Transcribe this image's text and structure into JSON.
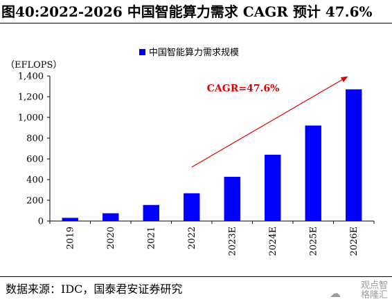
{
  "title": "图40:2022-2026 中国智能算力需求 CAGR 预计 47.6%",
  "source": "数据来源：IDC，国泰君安证券研究",
  "watermark": {
    "line1": "观点智",
    "line2": "格隆汇",
    "icon": "wechat-icon"
  },
  "colors": {
    "bar": "#0000FF",
    "arrow": "#E00000",
    "annotation": "#E00000",
    "axis": "#000000"
  },
  "chart_data": {
    "type": "bar",
    "categories": [
      "2019",
      "2020",
      "2021",
      "2022",
      "2023E",
      "2024E",
      "2025E",
      "2026E"
    ],
    "series": [
      {
        "name": "中国智能算力需求规模",
        "values": [
          31,
          75,
          155,
          268,
          427,
          640,
          922,
          1271
        ]
      }
    ],
    "ylabel": "（EFLOPS）",
    "ylim": [
      0,
      1400
    ],
    "yticks": [
      0,
      200,
      400,
      600,
      800,
      1000,
      1200,
      1400
    ],
    "ytick_labels": [
      "0",
      "200",
      "400",
      "600",
      "800",
      "1,000",
      "1,200",
      "1,400"
    ],
    "legend": "top",
    "grid": false,
    "annotation": {
      "text": "CAGR=47.6%",
      "arrow_from": [
        "2022",
        520
      ],
      "arrow_to": [
        "2026E",
        1390
      ]
    }
  }
}
